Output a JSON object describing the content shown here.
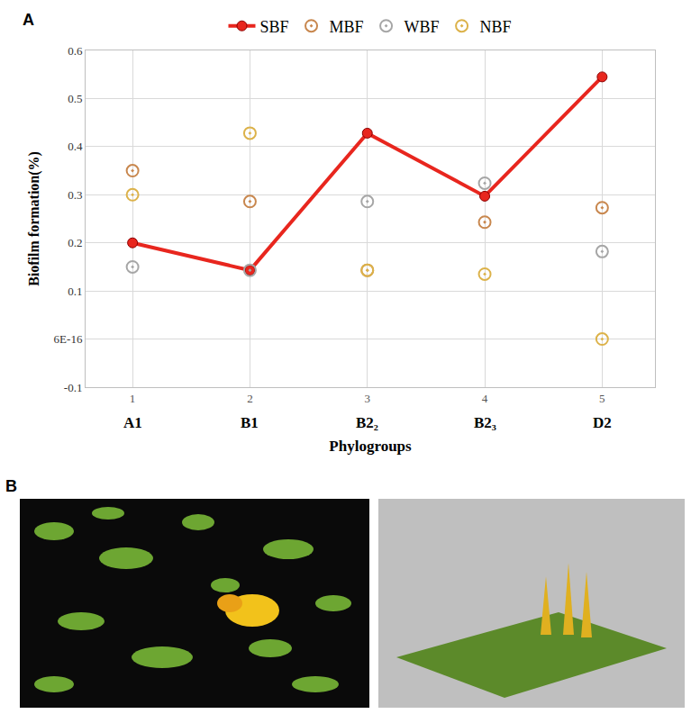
{
  "chart_data": {
    "type": "line",
    "x_label": "Phylogroups",
    "y_label": "Biofilm formation(%)",
    "x": [
      1,
      2,
      3,
      4,
      5
    ],
    "categories": [
      "A1",
      "B1",
      "B2₂",
      "B2₃",
      "D2"
    ],
    "series": [
      {
        "name": "SBF",
        "type": "line",
        "color": "#e8261e",
        "marker": "circled",
        "values": [
          0.2,
          0.143,
          0.428,
          0.297,
          0.545
        ]
      },
      {
        "name": "MBF",
        "type": "scatter",
        "color": "#c8874e",
        "marker": "ring",
        "values": [
          0.35,
          0.286,
          0.143,
          0.243,
          0.273
        ]
      },
      {
        "name": "WBF",
        "type": "scatter",
        "color": "#a6a6a6",
        "marker": "ring",
        "values": [
          0.15,
          0.143,
          0.286,
          0.324,
          0.182
        ]
      },
      {
        "name": "NBF",
        "type": "scatter",
        "color": "#dcb24a",
        "marker": "ring",
        "values": [
          0.3,
          0.428,
          0.143,
          0.135,
          0
        ]
      }
    ],
    "xlim": [
      0.6,
      5.45
    ],
    "xticks": [
      1,
      2,
      3,
      4,
      5
    ],
    "ylim": [
      -0.1,
      0.6
    ],
    "yticks": [
      -0.1,
      {
        "value": 6e-16,
        "label": "6E-16"
      },
      0.1,
      0.2,
      0.3,
      0.4,
      0.5,
      0.6
    ],
    "grid": true,
    "legend": "top"
  },
  "panel_labels": [
    "A",
    "B"
  ]
}
